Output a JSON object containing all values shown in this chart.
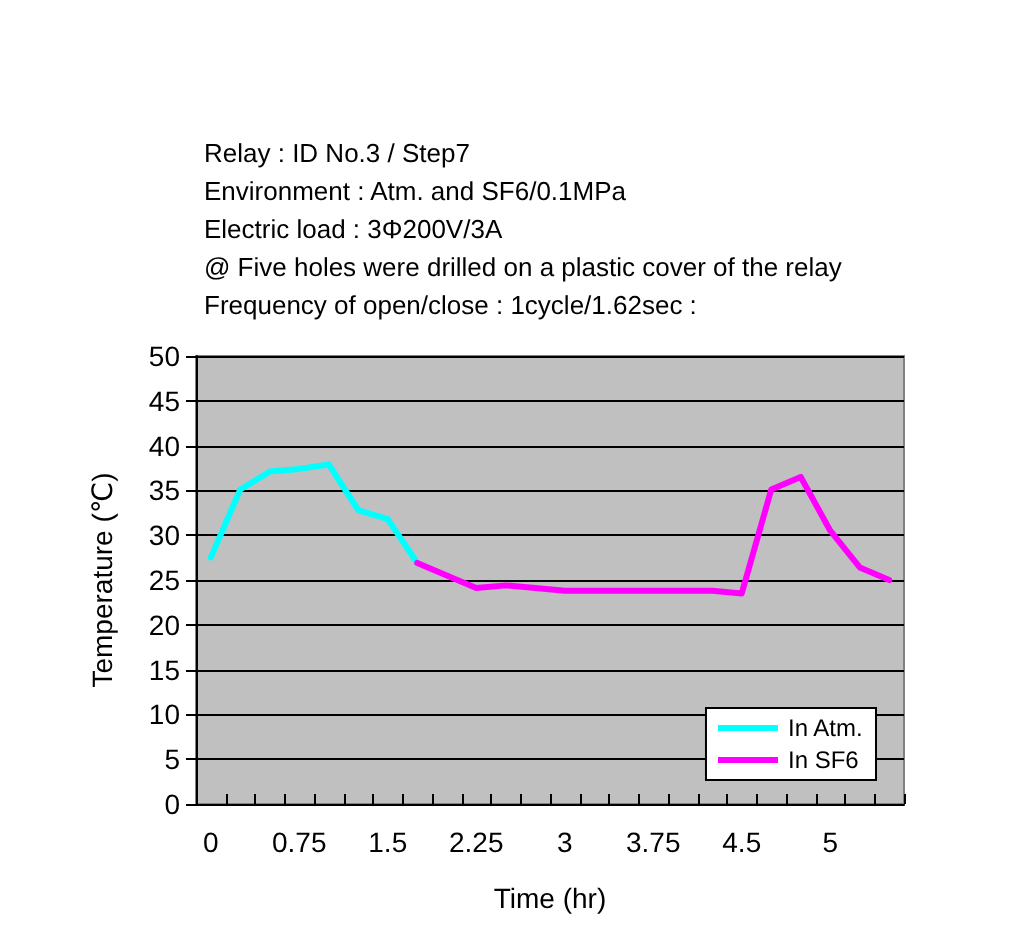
{
  "chart_data": {
    "type": "line",
    "annotations": [
      "Relay : ID No.3 / Step7",
      "Environment : Atm. and SF6/0.1MPa",
      "Electric load : 3Φ200V/3A",
      "@ Five holes were drilled on a plastic cover of the relay",
      "Frequency of open/close : 1cycle/1.62sec :"
    ],
    "xlabel": "Time (hr)",
    "ylabel": "Temperature (℃)",
    "categories": [
      "0",
      null,
      null,
      "0.75",
      null,
      null,
      "1.5",
      null,
      null,
      "2.25",
      null,
      null,
      "3",
      null,
      null,
      "3.75",
      null,
      null,
      "4.5",
      null,
      null,
      "5",
      null,
      null
    ],
    "series": [
      {
        "name": "In Atm.",
        "color": "#00ffff",
        "values": [
          27.5,
          35.1,
          37.1,
          37.4,
          37.9,
          32.8,
          31.8,
          26.9,
          null,
          null,
          null,
          null,
          null,
          null,
          null,
          null,
          null,
          null,
          null,
          null,
          null,
          null,
          null,
          null
        ]
      },
      {
        "name": "In SF6",
        "color": "#ff00ff",
        "values": [
          null,
          null,
          null,
          null,
          null,
          null,
          null,
          26.9,
          25.5,
          24.1,
          24.4,
          24.1,
          23.8,
          23.8,
          23.8,
          23.8,
          23.8,
          23.8,
          23.5,
          35.1,
          36.5,
          30.5,
          26.4,
          25.0
        ]
      }
    ],
    "ylim": [
      0,
      50
    ],
    "yticks": [
      0,
      5,
      10,
      15,
      20,
      25,
      30,
      35,
      40,
      45,
      50
    ],
    "grid": "y",
    "legend": "bottom right",
    "marker": "none",
    "line_style": "solid"
  }
}
